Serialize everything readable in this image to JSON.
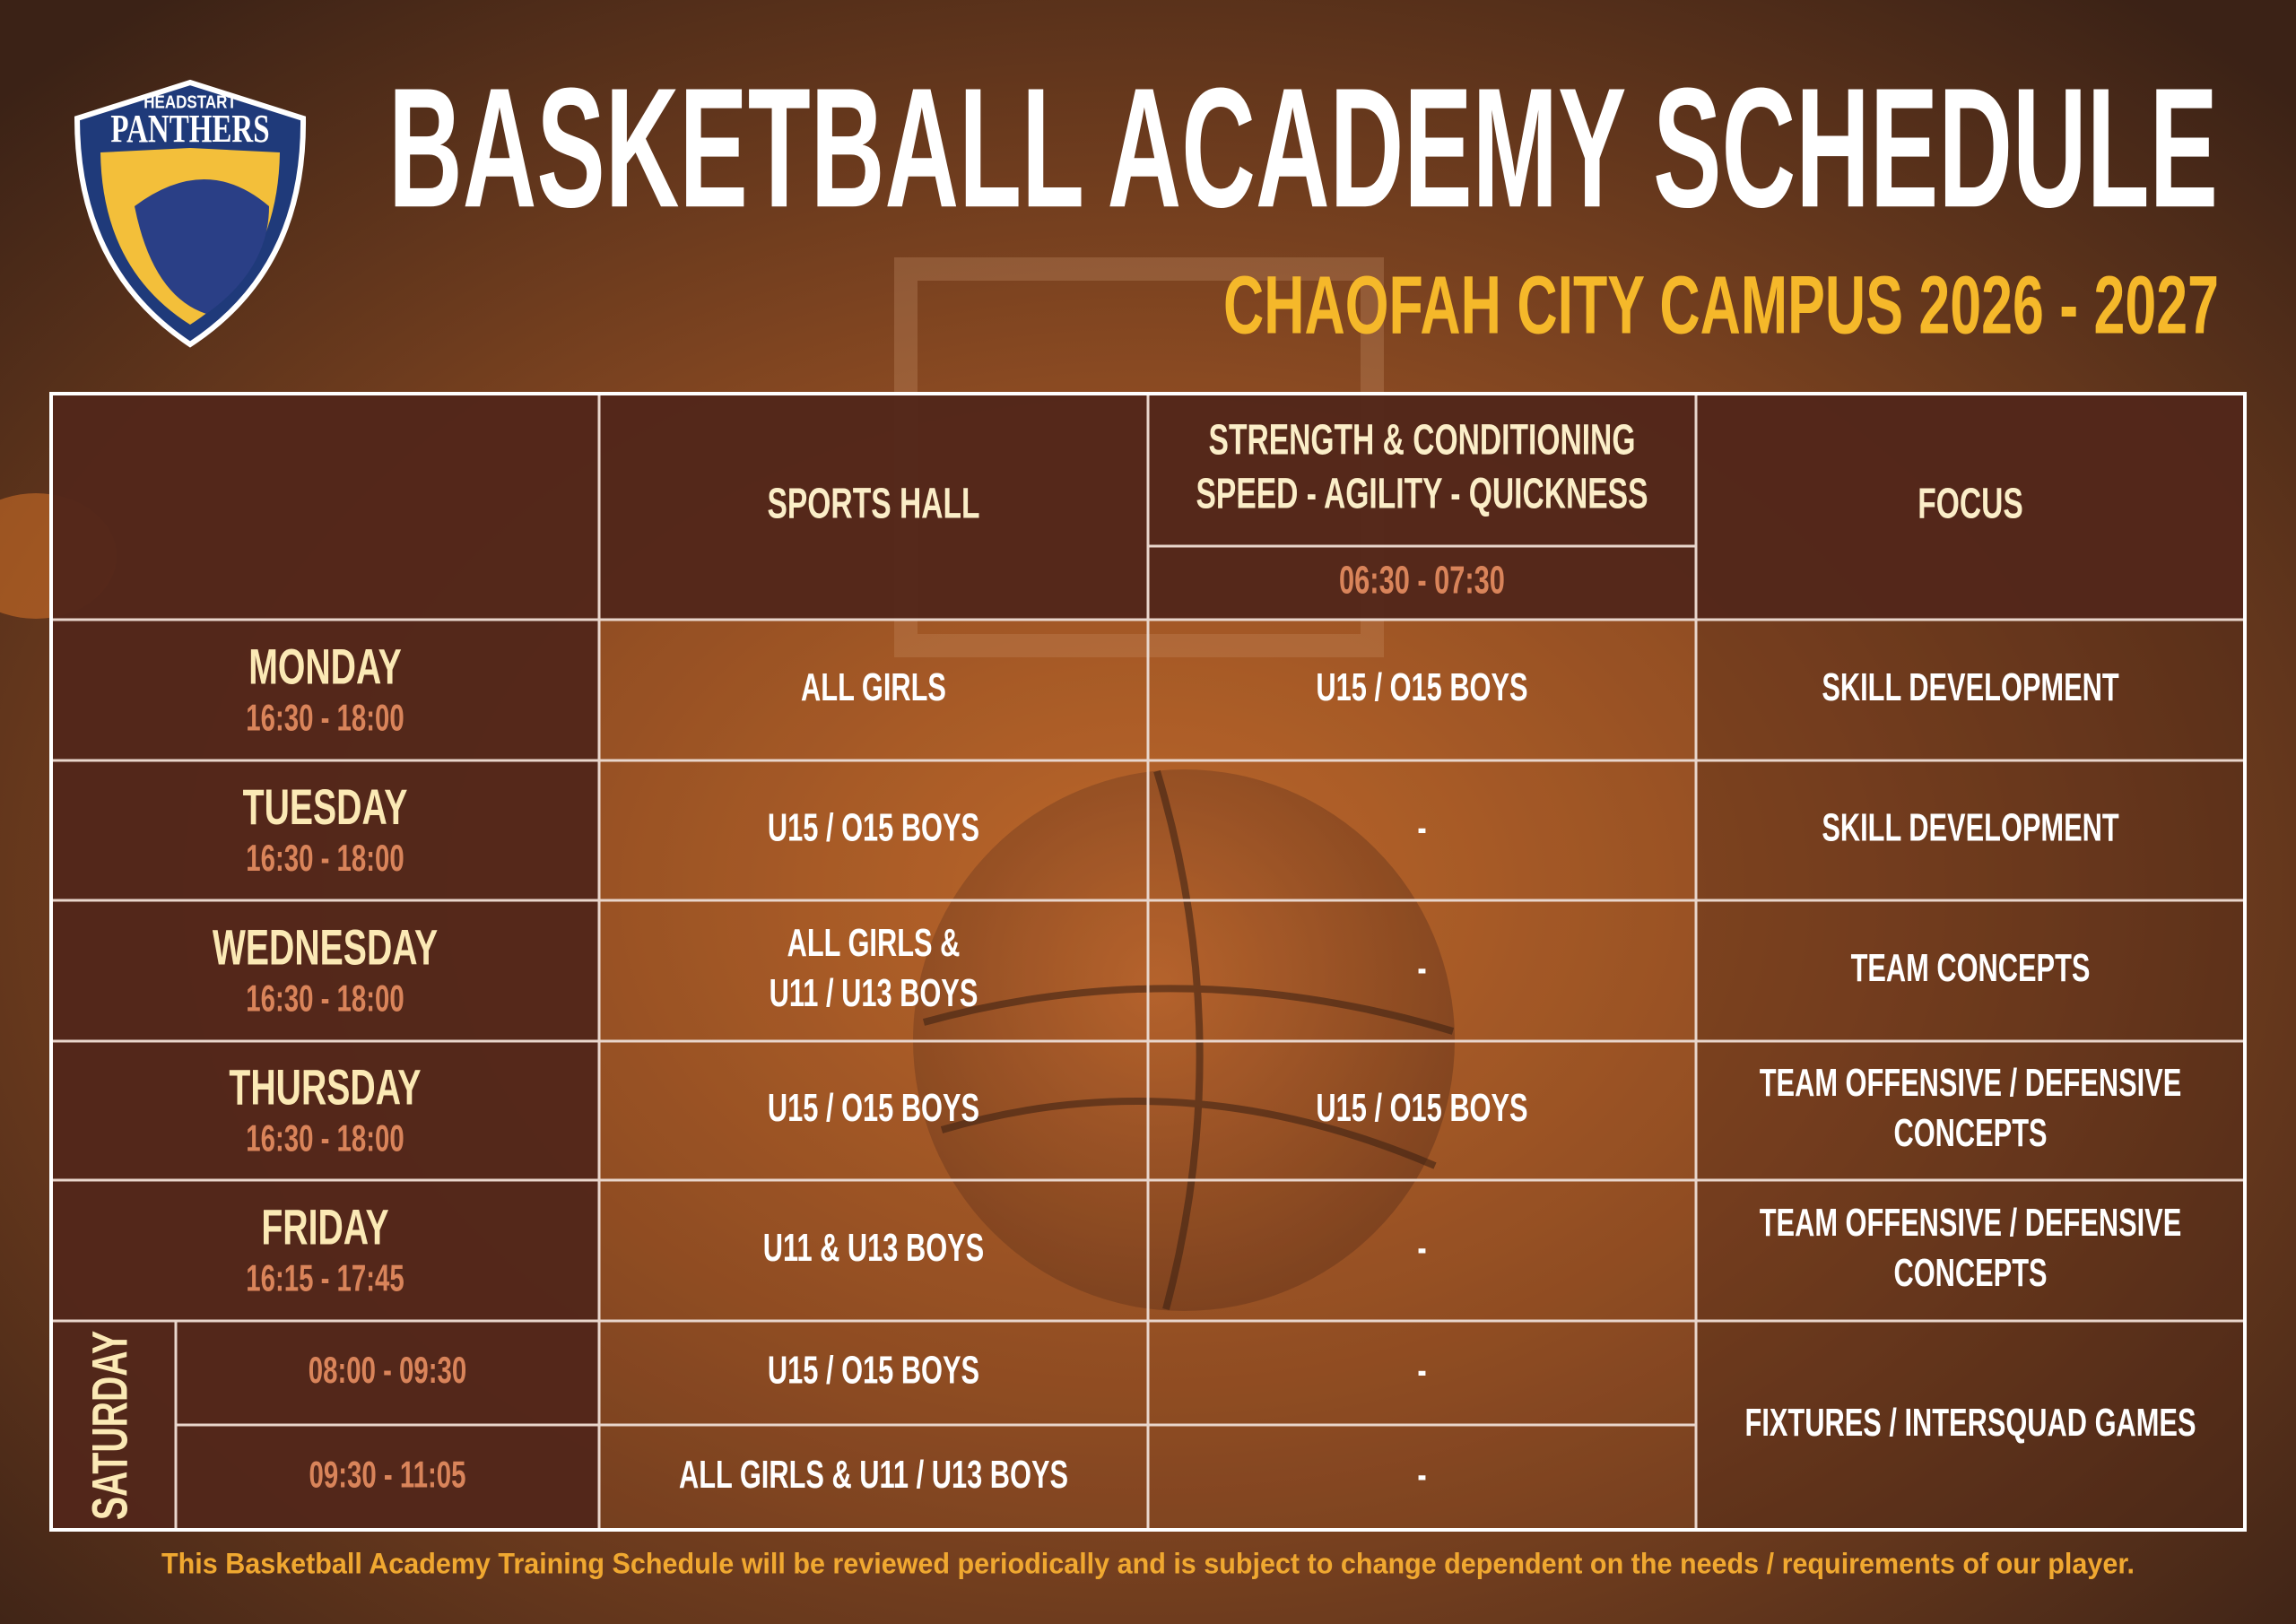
{
  "header": {
    "logo": {
      "top": "HEADSTART",
      "name": "PANTHERS"
    },
    "title": "BASKETBALL ACADEMY SCHEDULE",
    "subtitle": "CHAOFAH CITY CAMPUS 2026 - 2027"
  },
  "table": {
    "columns": [
      {
        "label": [
          "SPORTS HALL"
        ]
      },
      {
        "label": [
          "STRENGTH & CONDITIONING",
          "SPEED - AGILITY - QUICKNESS"
        ],
        "time": "06:30 - 07:30"
      },
      {
        "label": [
          "FOCUS"
        ]
      }
    ],
    "rows": [
      {
        "day": "MONDAY",
        "time": "16:30 - 18:00",
        "hall": [
          "ALL GIRLS"
        ],
        "sc": [
          "U15 / O15 BOYS"
        ],
        "focus": [
          "SKILL DEVELOPMENT"
        ]
      },
      {
        "day": "TUESDAY",
        "time": "16:30 - 18:00",
        "hall": [
          "U15 / O15 BOYS"
        ],
        "sc": [
          "-"
        ],
        "focus": [
          "SKILL DEVELOPMENT"
        ]
      },
      {
        "day": "WEDNESDAY",
        "time": "16:30 - 18:00",
        "hall": [
          "ALL GIRLS &",
          "U11 / U13 BOYS"
        ],
        "sc": [
          "-"
        ],
        "focus": [
          "TEAM CONCEPTS"
        ]
      },
      {
        "day": "THURSDAY",
        "time": "16:30 - 18:00",
        "hall": [
          "U15 / O15 BOYS"
        ],
        "sc": [
          "U15 / O15 BOYS"
        ],
        "focus": [
          "TEAM OFFENSIVE / DEFENSIVE",
          "CONCEPTS"
        ]
      },
      {
        "day": "FRIDAY",
        "time": "16:15 - 17:45",
        "hall": [
          "U11 & U13 BOYS"
        ],
        "sc": [
          "-"
        ],
        "focus": [
          "TEAM OFFENSIVE / DEFENSIVE",
          "CONCEPTS"
        ]
      }
    ],
    "saturday": {
      "day": "SATURDAY",
      "sessions": [
        {
          "time": "08:00 - 09:30",
          "hall": "U15 / O15 BOYS",
          "sc": "-"
        },
        {
          "time": "09:30 - 11:05",
          "hall": "ALL GIRLS & U11 / U13 BOYS",
          "sc": "-"
        }
      ],
      "focus": "FIXTURES / INTERSQUAD GAMES"
    }
  },
  "footer": "This Basketball Academy Training Schedule will be reviewed periodically and is subject to change dependent on the needs / requirements of our player."
}
